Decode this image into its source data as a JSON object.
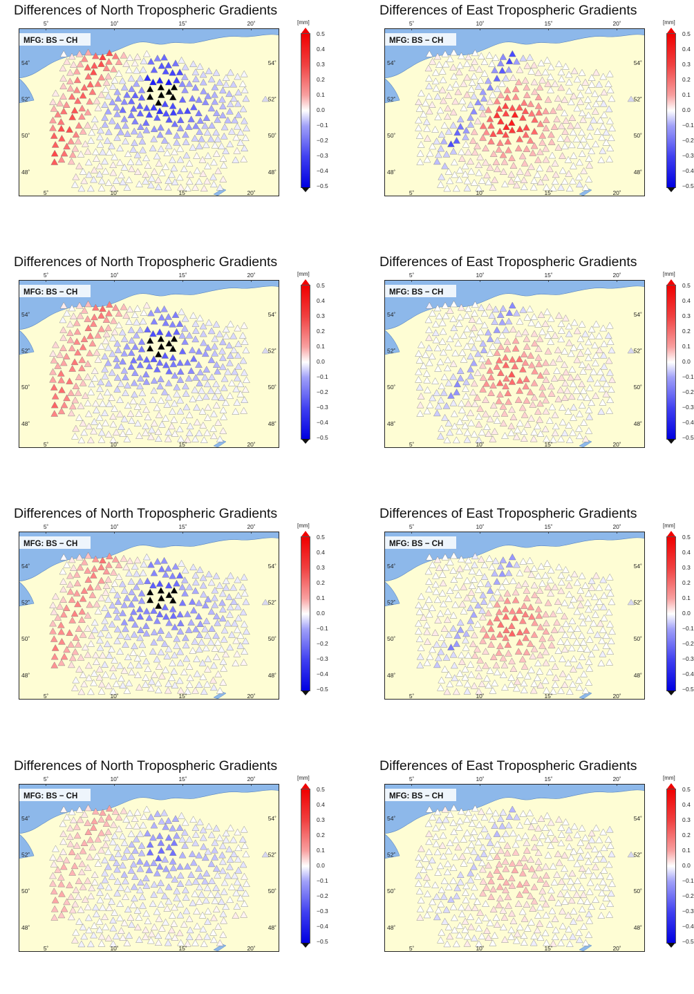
{
  "colorbar": {
    "unit": "[mm]",
    "ticks": [
      "0.5",
      "0.4",
      "0.3",
      "0.2",
      "0.1",
      "0.0",
      "−0.1",
      "−0.2",
      "−0.3",
      "−0.4",
      "−0.5"
    ]
  },
  "axes": {
    "lon_ticks": [
      "5˚",
      "10˚",
      "15˚",
      "20˚"
    ],
    "lat_ticks": [
      "54˚",
      "52˚",
      "50˚",
      "48˚"
    ]
  },
  "colors": {
    "land": "#fefdd4",
    "sea": "#8db8ea",
    "positive": "#e81010",
    "negative": "#1010e0",
    "black": "#000000"
  },
  "panels": [
    {
      "title": "Differences of North Tropospheric Gradients",
      "label": "MFG: BS − CH",
      "component": "north",
      "intensity": 1.0
    },
    {
      "title": "Differences of East Tropospheric Gradients",
      "label": "MFG: BS − CH",
      "component": "east",
      "intensity": 1.0
    },
    {
      "title": "Differences of North Tropospheric Gradients",
      "label": "MFG: BS − CH",
      "component": "north",
      "intensity": 0.8
    },
    {
      "title": "Differences of East Tropospheric Gradients",
      "label": "MFG: BS − CH",
      "component": "east",
      "intensity": 0.7
    },
    {
      "title": "Differences of North Tropospheric Gradients",
      "label": "MFG: BS − CH",
      "component": "north",
      "intensity": 0.75
    },
    {
      "title": "Differences of East Tropospheric Gradients",
      "label": "MFG: BS − CH",
      "component": "east",
      "intensity": 0.7
    },
    {
      "title": "Differences of North Tropospheric Gradients",
      "label": "MFG: BS − CH",
      "component": "north",
      "intensity": 0.45
    },
    {
      "title": "Differences of East Tropospheric Gradients",
      "label": "MFG: BS − CH",
      "component": "east",
      "intensity": 0.35
    }
  ]
}
